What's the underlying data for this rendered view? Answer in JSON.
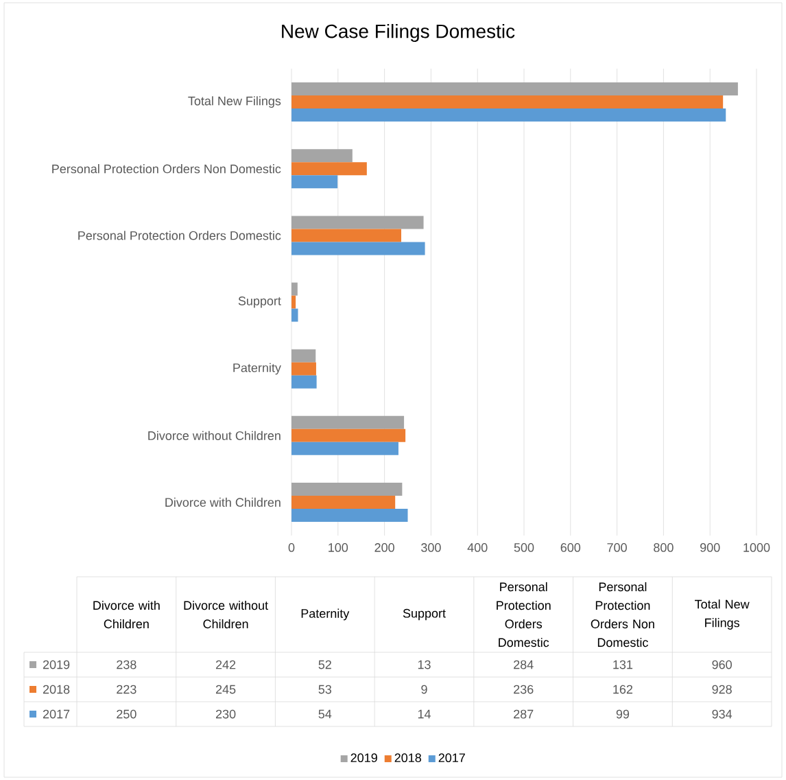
{
  "chart_data": [
    {
      "type": "bar",
      "orientation": "horizontal",
      "title": "New Case Filings Domestic",
      "categories": [
        "Total New Filings",
        "Personal Protection Orders Non Domestic",
        "Personal Protection Orders Domestic",
        "Support",
        "Paternity",
        "Divorce without Children",
        "Divorce with Children"
      ],
      "series": [
        {
          "name": "2019",
          "color": "#a5a5a5",
          "values": [
            960,
            131,
            284,
            13,
            52,
            242,
            238
          ]
        },
        {
          "name": "2018",
          "color": "#ed7d31",
          "values": [
            928,
            162,
            236,
            9,
            53,
            245,
            223
          ]
        },
        {
          "name": "2017",
          "color": "#5b9bd5",
          "values": [
            934,
            99,
            287,
            14,
            54,
            230,
            250
          ]
        }
      ],
      "xlim": [
        0,
        1000
      ],
      "xticks": [
        0,
        100,
        200,
        300,
        400,
        500,
        600,
        700,
        800,
        900,
        1000
      ],
      "grid": "x",
      "legend": "bottom"
    },
    {
      "type": "other",
      "categories": [
        "Divorce with Children",
        "Divorce without Children",
        "Paternity",
        "Support",
        "Personal Protection Orders Domestic",
        "Personal Protection Orders Non Domestic",
        "Total New Filings"
      ],
      "series": [
        {
          "name": "2019",
          "color": "#a5a5a5",
          "values": [
            238,
            242,
            52,
            13,
            284,
            131,
            960
          ]
        },
        {
          "name": "2018",
          "color": "#ed7d31",
          "values": [
            223,
            245,
            53,
            9,
            236,
            162,
            928
          ]
        },
        {
          "name": "2017",
          "color": "#5b9bd5",
          "values": [
            250,
            230,
            54,
            14,
            287,
            99,
            934
          ]
        }
      ],
      "data_labels": true
    }
  ]
}
